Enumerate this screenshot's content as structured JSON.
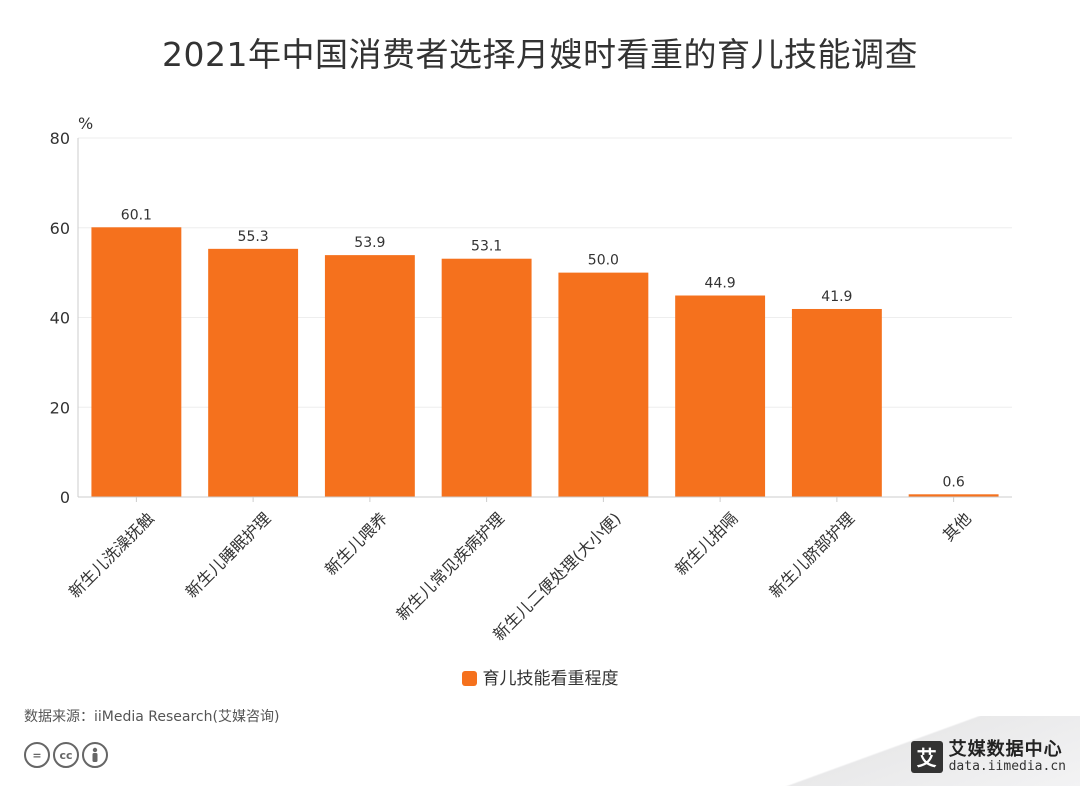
{
  "chart_data": {
    "type": "bar",
    "title": "2021年中国消费者选择月嫂时看重的育儿技能调查",
    "unit_label": "%",
    "categories": [
      "新生儿洗澡抚触",
      "新生儿睡眠护理",
      "新生儿喂养",
      "新生儿常见疾病护理",
      "新生儿二便处理(大小便)",
      "新生儿拍嗝",
      "新生儿脐部护理",
      "其他"
    ],
    "series": [
      {
        "name": "育儿技能看重程度",
        "values": [
          60.1,
          55.3,
          53.9,
          53.1,
          50.0,
          44.9,
          41.9,
          0.6
        ],
        "color": "#f5711d"
      }
    ],
    "value_labels": [
      "60.1",
      "55.3",
      "53.9",
      "53.1",
      "50.0",
      "44.9",
      "41.9",
      "0.6"
    ],
    "ylim": [
      0,
      80
    ],
    "yticks": [
      "0",
      "20",
      "40",
      "60",
      "80"
    ],
    "grid": true,
    "legend_position": "bottom"
  },
  "source": "数据来源：iiMedia Research(艾媒咨询)",
  "license_icons": [
    "cc-equal-icon",
    "cc-icon",
    "cc-by-icon"
  ],
  "brand": {
    "name": "艾媒数据中心",
    "url": "data.iimedia.cn",
    "logo_char": "艾"
  }
}
